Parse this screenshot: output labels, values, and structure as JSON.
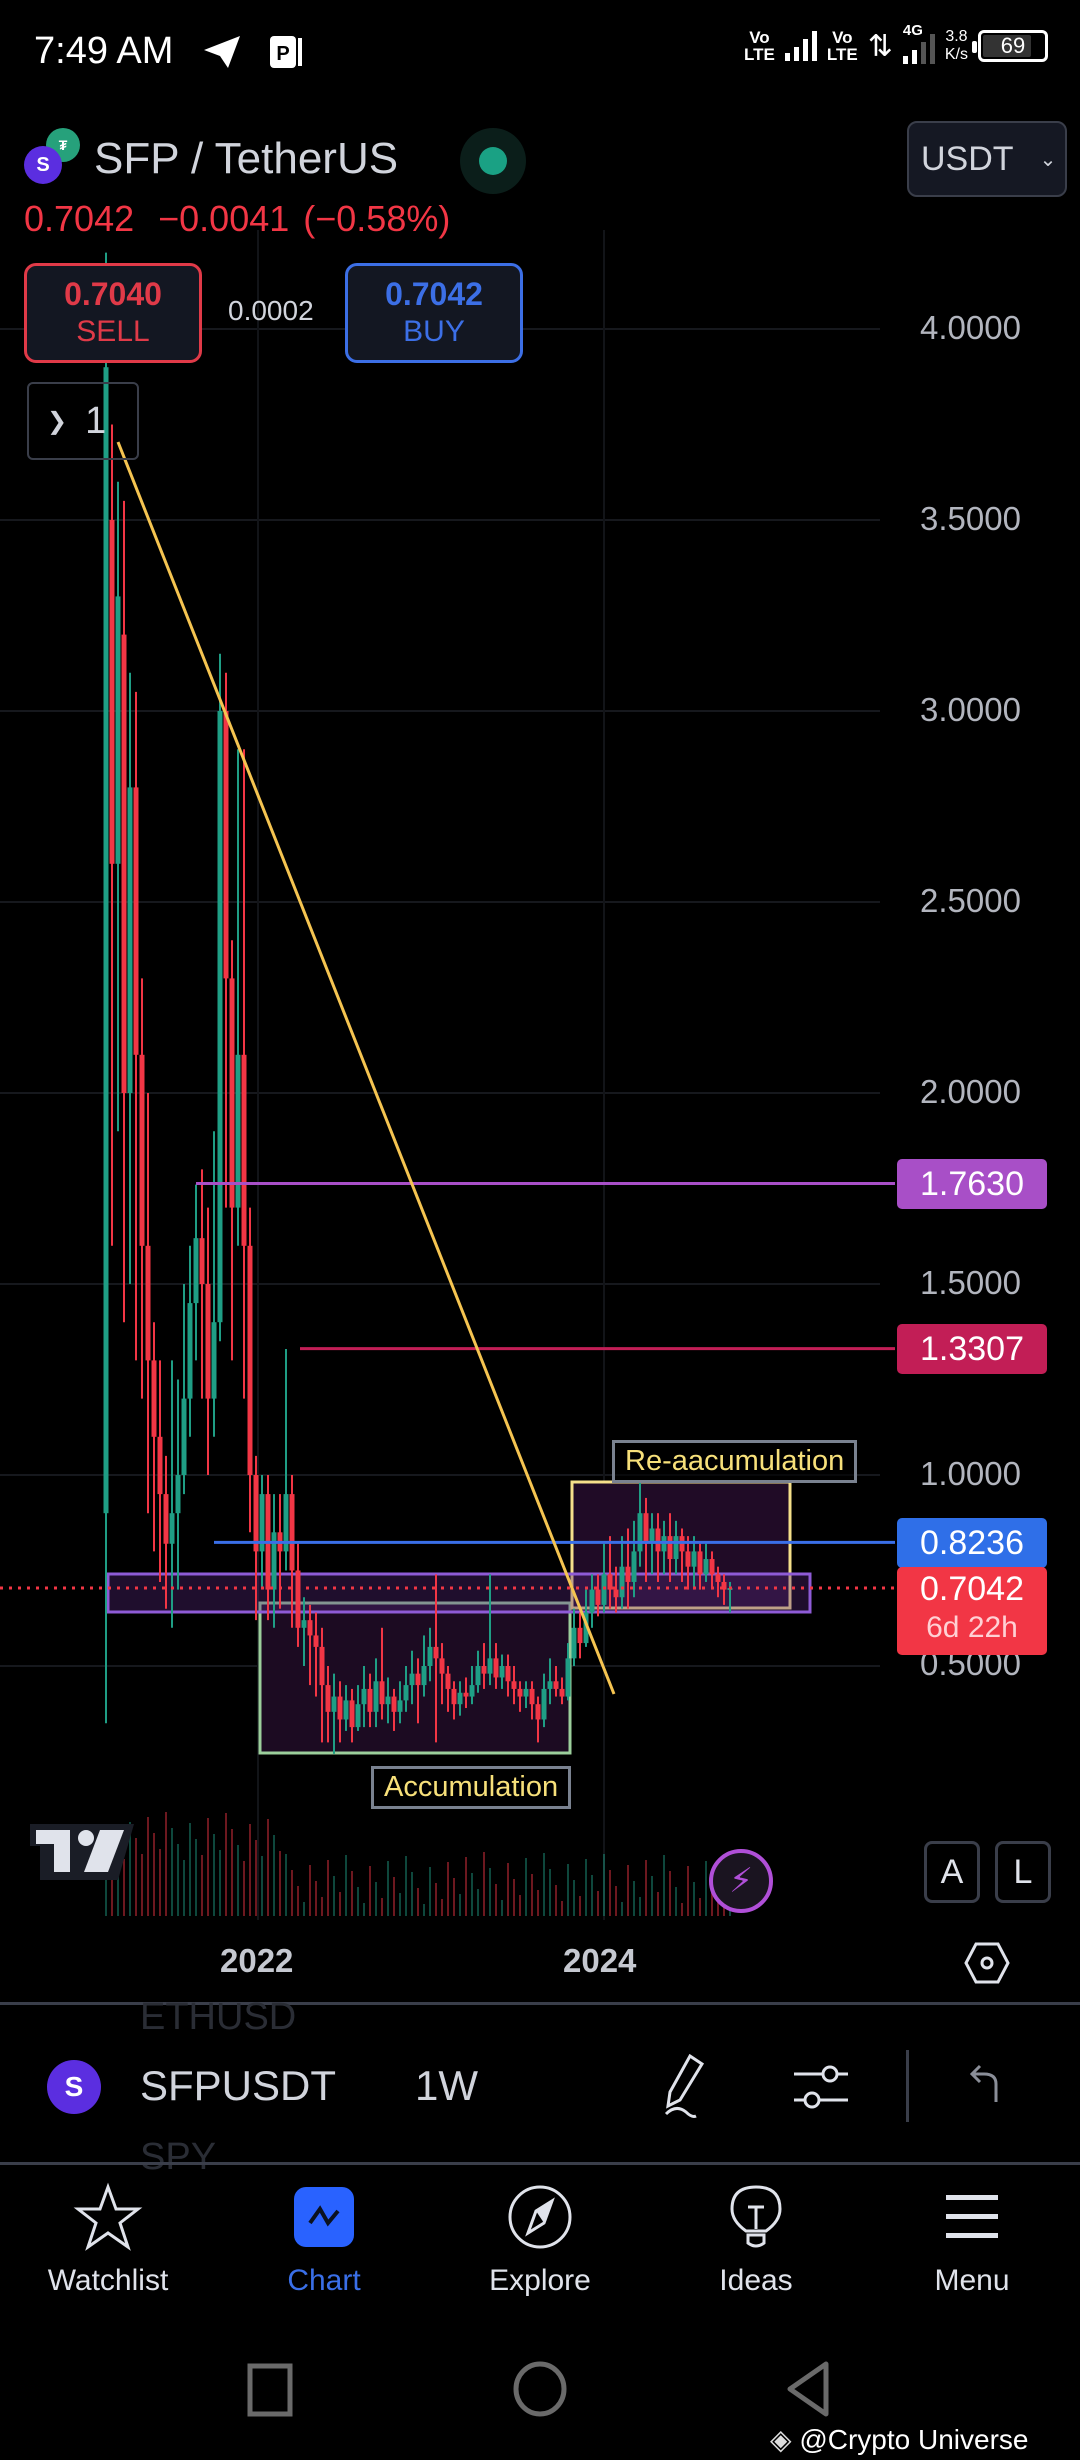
{
  "status_bar": {
    "time": "7:49 AM",
    "icons": [
      "telegram-icon",
      "parking-app-icon"
    ],
    "sim1": "Vo LTE",
    "sim2": "Vo LTE",
    "network_type": "4G",
    "net_speed": "3.8",
    "net_speed_unit": "K/s",
    "battery": "69"
  },
  "header": {
    "pair_title": "SFP / TetherUS",
    "market_status": "open",
    "currency": "USDT",
    "last_price": "0.7042",
    "change": "−0.0041",
    "change_pct": "(−0.58%)",
    "sell_price": "0.7040",
    "sell_label": "SELL",
    "buy_price": "0.7042",
    "buy_label": "BUY",
    "spread": "0.0002",
    "indicators_count": "1"
  },
  "colors": {
    "up": "#1f9e85",
    "down": "#f23645",
    "trendline": "#f5c451",
    "level_1763": "#a84fc7",
    "level_13307": "#c21e56",
    "level_08236": "#3a6fe8",
    "current": "#f23645",
    "range_box": "#8e5bd6",
    "accum_box": "#9ccf9c",
    "reaccum_box": "#f5e08a"
  },
  "chart_data": {
    "type": "candlestick",
    "title": "SFP / TetherUS",
    "symbol": "SFPUSDT",
    "interval": "1W",
    "xlabel": "",
    "ylabel": "USDT",
    "x_ticks": [
      "2022",
      "2024"
    ],
    "y_ticks": [
      "4.0000",
      "3.5000",
      "3.0000",
      "2.5000",
      "2.0000",
      "1.5000",
      "1.0000",
      "0.5000"
    ],
    "ylim": [
      0.2,
      4.2
    ],
    "grid": true,
    "horizontal_levels": [
      {
        "price": "1.7630",
        "color": "#a84fc7"
      },
      {
        "price": "1.3307",
        "color": "#c21e56"
      },
      {
        "price": "0.8236",
        "color": "#3a6fe8"
      }
    ],
    "current_price": {
      "price": "0.7042",
      "countdown": "6d 22h"
    },
    "trendline": {
      "from": [
        2021.1,
        3.7
      ],
      "to": [
        2024.0,
        0.45
      ]
    },
    "zones": [
      {
        "label": "Accumulation",
        "price_top": 0.62,
        "price_bottom": 0.27
      },
      {
        "label": "Re-aacumulation",
        "price_top": 0.95,
        "price_bottom": 0.66
      },
      {
        "label": "",
        "price_top": 0.74,
        "price_bottom": 0.63
      }
    ],
    "candles_note": "Weekly OHLC approximated: ATH ~4.0 in early 2021, spike ~3.15 late 2021, bottom ~0.27 in 2022-2023, ranging 0.63-0.98 in 2024."
  },
  "annotations": {
    "accumulation": "Accumulation",
    "reaccumulation": "Re-aacumulation"
  },
  "controls": {
    "auto_scale": "A",
    "log_scale": "L"
  },
  "toolbar": {
    "symbol": "SFPUSDT",
    "interval": "1W",
    "ghost_above": "ETHUSD",
    "ghost_below": "SPY"
  },
  "bottom_nav": [
    {
      "label": "Watchlist",
      "icon": "star-icon",
      "active": false
    },
    {
      "label": "Chart",
      "icon": "chart-icon",
      "active": true
    },
    {
      "label": "Explore",
      "icon": "compass-icon",
      "active": false
    },
    {
      "label": "Ideas",
      "icon": "lightbulb-icon",
      "active": false
    },
    {
      "label": "Menu",
      "icon": "hamburger-icon",
      "active": false
    }
  ],
  "watermark": "@Crypto Universe offi..."
}
